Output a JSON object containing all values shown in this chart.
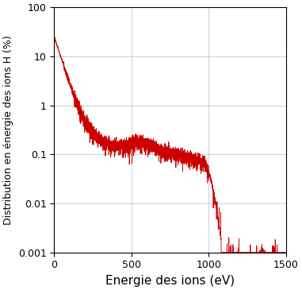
{
  "title": "",
  "xlabel": "Energie des ions (eV)",
  "ylabel": "Distribution en énergie des ions H (%)",
  "xlim": [
    0,
    1500
  ],
  "ylim": [
    0.001,
    100
  ],
  "line_color": "#cc0000",
  "line_width": 0.6,
  "background_color": "#ffffff",
  "grid_color": "#b0b0d0",
  "xlabel_fontsize": 11,
  "ylabel_fontsize": 9,
  "tick_fontsize": 9,
  "yticks": [
    0.001,
    0.01,
    0.1,
    1,
    10,
    100
  ],
  "xticks": [
    0,
    500,
    1000,
    1500
  ]
}
